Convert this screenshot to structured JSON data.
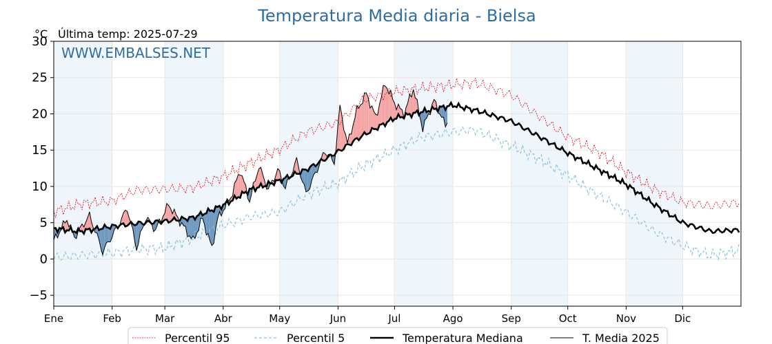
{
  "chart_data": {
    "type": "line",
    "title": "Temperatura Media diaria - Bielsa",
    "unit_label": "°C",
    "last_temp_label": "Última temp: 2025-07-29",
    "watermark": "WWW.EMBALSES.NET",
    "ylim": [
      -6.5,
      30
    ],
    "yticks": [
      -5,
      0,
      5,
      10,
      15,
      20,
      25,
      30
    ],
    "months": [
      "Ene",
      "Feb",
      "Mar",
      "Abr",
      "May",
      "Jun",
      "Jul",
      "Ago",
      "Sep",
      "Oct",
      "Nov",
      "Dic"
    ],
    "month_start_days": [
      1,
      32,
      60,
      91,
      121,
      152,
      182,
      213,
      244,
      274,
      305,
      335
    ],
    "days_in_year": 365,
    "grid": true,
    "legend_placement": "bottom-center",
    "colors": {
      "p95": "#e8000b",
      "p5": "#89c3dc",
      "median": "#000000",
      "current": "#000000",
      "above_fill": "#f4a6a6",
      "below_fill": "#6e99c0",
      "band": "#eef5fb",
      "title": "#2e6da4"
    },
    "series": [
      {
        "name": "Percentil 95",
        "key": "p95",
        "points": [
          [
            1,
            6.5
          ],
          [
            15,
            7.6
          ],
          [
            32,
            8.0
          ],
          [
            45,
            9.5
          ],
          [
            60,
            9.6
          ],
          [
            75,
            9.8
          ],
          [
            91,
            11.4
          ],
          [
            105,
            13.2
          ],
          [
            121,
            15.1
          ],
          [
            135,
            17.5
          ],
          [
            152,
            18.8
          ],
          [
            165,
            21.9
          ],
          [
            182,
            23.0
          ],
          [
            195,
            23.5
          ],
          [
            213,
            24.0
          ],
          [
            225,
            24.3
          ],
          [
            244,
            22.6
          ],
          [
            258,
            19.8
          ],
          [
            274,
            16.8
          ],
          [
            290,
            14.8
          ],
          [
            305,
            12.0
          ],
          [
            320,
            9.6
          ],
          [
            335,
            7.8
          ],
          [
            350,
            7.3
          ],
          [
            365,
            7.8
          ]
        ]
      },
      {
        "name": "Percentil 5",
        "key": "p5",
        "points": [
          [
            1,
            0.2
          ],
          [
            15,
            0.5
          ],
          [
            32,
            0.8
          ],
          [
            45,
            1.3
          ],
          [
            60,
            1.5
          ],
          [
            75,
            2.9
          ],
          [
            91,
            4.6
          ],
          [
            105,
            5.8
          ],
          [
            121,
            6.5
          ],
          [
            135,
            8.8
          ],
          [
            152,
            10.5
          ],
          [
            165,
            12.8
          ],
          [
            182,
            15.0
          ],
          [
            195,
            16.7
          ],
          [
            213,
            17.5
          ],
          [
            225,
            17.8
          ],
          [
            244,
            15.6
          ],
          [
            258,
            13.9
          ],
          [
            274,
            11.5
          ],
          [
            290,
            8.8
          ],
          [
            305,
            6.5
          ],
          [
            320,
            3.8
          ],
          [
            335,
            1.8
          ],
          [
            350,
            0.5
          ],
          [
            365,
            1.2
          ]
        ]
      },
      {
        "name": "Temperatura Mediana",
        "key": "median",
        "points": [
          [
            1,
            4.2
          ],
          [
            15,
            3.8
          ],
          [
            32,
            4.5
          ],
          [
            45,
            4.9
          ],
          [
            60,
            5.2
          ],
          [
            75,
            5.7
          ],
          [
            91,
            7.4
          ],
          [
            105,
            9.5
          ],
          [
            121,
            10.8
          ],
          [
            135,
            12.3
          ],
          [
            152,
            14.8
          ],
          [
            165,
            17.0
          ],
          [
            182,
            19.4
          ],
          [
            195,
            20.2
          ],
          [
            213,
            21.2
          ],
          [
            225,
            20.5
          ],
          [
            244,
            19.0
          ],
          [
            258,
            17.0
          ],
          [
            274,
            14.6
          ],
          [
            290,
            12.4
          ],
          [
            305,
            10.3
          ],
          [
            320,
            7.5
          ],
          [
            335,
            5.0
          ],
          [
            350,
            3.8
          ],
          [
            365,
            4.0
          ]
        ]
      },
      {
        "name": "T. Media 2025",
        "key": "current",
        "points": [
          [
            1,
            2.5
          ],
          [
            8,
            5.5
          ],
          [
            12,
            3.0
          ],
          [
            20,
            6.0
          ],
          [
            27,
            1.0
          ],
          [
            35,
            4.5
          ],
          [
            40,
            7.0
          ],
          [
            45,
            1.5
          ],
          [
            50,
            5.8
          ],
          [
            55,
            4.0
          ],
          [
            62,
            7.5
          ],
          [
            68,
            5.2
          ],
          [
            75,
            2.5
          ],
          [
            80,
            5.6
          ],
          [
            85,
            1.5
          ],
          [
            88,
            5.5
          ],
          [
            95,
            8.5
          ],
          [
            100,
            12.2
          ],
          [
            105,
            8.0
          ],
          [
            110,
            12.8
          ],
          [
            115,
            9.5
          ],
          [
            120,
            12.3
          ],
          [
            124,
            9.8
          ],
          [
            130,
            13.6
          ],
          [
            135,
            9.0
          ],
          [
            140,
            11.8
          ],
          [
            145,
            14.8
          ],
          [
            150,
            13.2
          ],
          [
            153,
            21.0
          ],
          [
            157,
            15.8
          ],
          [
            162,
            20.5
          ],
          [
            167,
            22.8
          ],
          [
            172,
            19.5
          ],
          [
            177,
            24.2
          ],
          [
            182,
            21.5
          ],
          [
            187,
            20.0
          ],
          [
            192,
            23.5
          ],
          [
            197,
            18.0
          ],
          [
            203,
            21.8
          ],
          [
            209,
            18.4
          ],
          [
            210,
            19.0
          ]
        ]
      }
    ],
    "legend": [
      {
        "key": "p95",
        "label": "Percentil 95"
      },
      {
        "key": "p5",
        "label": "Percentil 5"
      },
      {
        "key": "median",
        "label": "Temperatura Mediana"
      },
      {
        "key": "current",
        "label": "T. Media 2025"
      }
    ]
  }
}
